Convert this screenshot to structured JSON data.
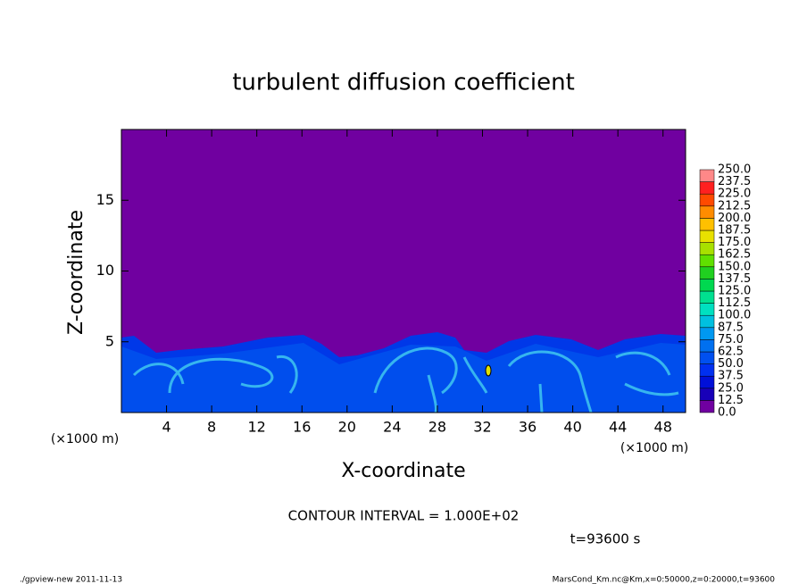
{
  "chart_data": {
    "type": "heatmap",
    "title": "turbulent diffusion coefficient",
    "xlabel": "X-coordinate",
    "ylabel": "Z-coordinate",
    "xunit": "(×1000 m)",
    "yunit": "(×1000 m)",
    "xlim": [
      0,
      50
    ],
    "xticks": [
      4,
      8,
      12,
      16,
      20,
      24,
      28,
      32,
      36,
      40,
      44,
      48
    ],
    "ylim": [
      0,
      20
    ],
    "yticks": [
      5,
      10,
      15
    ],
    "colorbar": {
      "levels": [
        {
          "value": 0,
          "label": "0.0"
        },
        {
          "value": 12.5,
          "label": "12.5"
        },
        {
          "value": 25,
          "label": "25.0"
        },
        {
          "value": 37.5,
          "label": "37.5"
        },
        {
          "value": 50,
          "label": "50.0"
        },
        {
          "value": 62.5,
          "label": "62.5"
        },
        {
          "value": 75,
          "label": "75.0"
        },
        {
          "value": 87.5,
          "label": "87.5"
        },
        {
          "value": 100,
          "label": "100.0"
        },
        {
          "value": 112.5,
          "label": "112.5"
        },
        {
          "value": 125,
          "label": "125.0"
        },
        {
          "value": 137.5,
          "label": "137.5"
        },
        {
          "value": 150,
          "label": "150.0"
        },
        {
          "value": 162.5,
          "label": "162.5"
        },
        {
          "value": 175,
          "label": "175.0"
        },
        {
          "value": 187.5,
          "label": "187.5"
        },
        {
          "value": 200,
          "label": "200.0"
        },
        {
          "value": 212.5,
          "label": "212.5"
        },
        {
          "value": 225,
          "label": "225.0"
        },
        {
          "value": 237.5,
          "label": "237.5"
        },
        {
          "value": 250,
          "label": "250.0"
        }
      ],
      "colors": [
        "#7000a0",
        "#1800b8",
        "#0010d8",
        "#0030f0",
        "#0050f0",
        "#0070f0",
        "#0098f0",
        "#00c0e0",
        "#00e0c0",
        "#00e090",
        "#00d850",
        "#20d020",
        "#60e000",
        "#a8e000",
        "#e8e000",
        "#ffc000",
        "#ff8c00",
        "#ff4a00",
        "#ff2020",
        "#ff8888"
      ]
    },
    "contour_interval": "CONTOUR INTERVAL = 1.000E+02",
    "time_label": "t=93600 s",
    "footer_left": "./gpview-new  2011-11-13",
    "footer_right": "MarsCond_Km.nc@Km,x=0:50000,z=0:20000,t=93600"
  }
}
